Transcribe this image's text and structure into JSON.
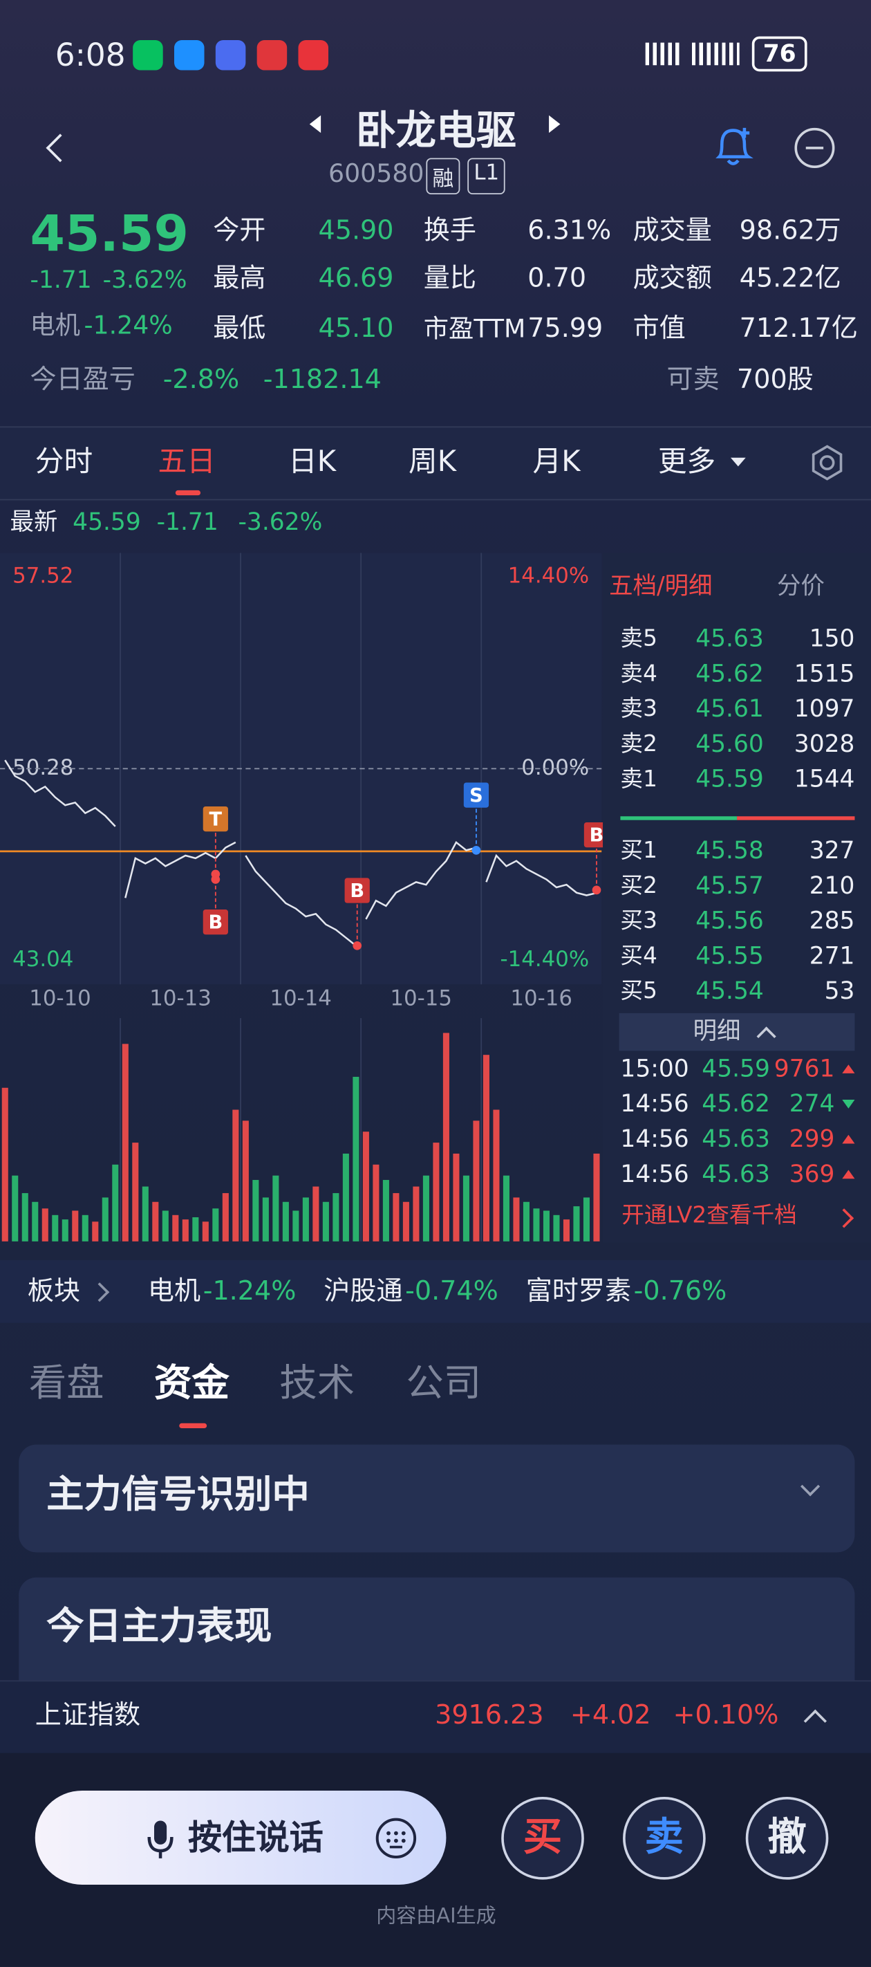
{
  "status_bar": {
    "time": "6:08",
    "battery": "76"
  },
  "header": {
    "name": "卧龙电驱",
    "code": "600580",
    "tags": [
      "融",
      "L1"
    ]
  },
  "quote": {
    "price": "45.59",
    "change": "-1.71",
    "change_pct": "-3.62%",
    "sector": "电机",
    "sector_pct": "-1.24%"
  },
  "stats": [
    [
      "今开",
      "45.90"
    ],
    [
      "最高",
      "46.69"
    ],
    [
      "最低",
      "45.10"
    ],
    [
      "换手",
      "6.31%"
    ],
    [
      "量比",
      "0.70"
    ],
    [
      "市盈TTM",
      "75.99"
    ],
    [
      "成交量",
      "98.62万"
    ],
    [
      "成交额",
      "45.22亿"
    ],
    [
      "市值",
      "712.17亿"
    ]
  ],
  "pnl": {
    "label": "今日盈亏",
    "pct": "-2.8%",
    "amount": "-1182.14",
    "sellable_label": "可卖",
    "sellable": "700股"
  },
  "tabs": {
    "items": [
      "分时",
      "五日",
      "日K",
      "周K",
      "月K",
      "更多"
    ],
    "active": 1
  },
  "latest": {
    "label": "最新",
    "price": "45.59",
    "change": "-1.71",
    "change_pct": "-3.62%"
  },
  "price_chart": {
    "type": "line",
    "ylim": [
      43.04,
      57.52
    ],
    "yticks": [
      57.52,
      50.28,
      43.04
    ],
    "y2lim": [
      -14.4,
      14.4
    ],
    "y2ticks": [
      {
        "value": 14.4,
        "label": "14.40%"
      },
      {
        "value": 0,
        "label": "0.00%"
      },
      {
        "value": -14.4,
        "label": "-14.40%"
      }
    ],
    "reference": 50.28,
    "cost_line": 47.16,
    "days": [
      {
        "label": "10-10",
        "values": [
          50.6,
          50.0,
          49.8,
          49.4,
          49.6,
          49.2,
          48.9,
          49.0,
          48.6,
          48.8,
          48.5,
          48.1
        ],
        "volume": [
          70,
          30,
          22,
          18,
          15,
          12,
          10,
          14,
          12,
          9,
          20,
          35
        ]
      },
      {
        "label": "10-13",
        "values": [
          45.4,
          46.9,
          46.7,
          46.9,
          46.6,
          46.8,
          47.0,
          46.9,
          47.1,
          46.9,
          47.3,
          47.5
        ],
        "volume": [
          90,
          45,
          25,
          18,
          14,
          12,
          10,
          11,
          9,
          15,
          22,
          60
        ]
      },
      {
        "label": "10-14",
        "values": [
          47.0,
          46.4,
          46.0,
          45.6,
          45.2,
          45.0,
          44.7,
          44.8,
          44.4,
          44.2,
          43.9,
          43.6
        ],
        "volume": [
          55,
          28,
          20,
          30,
          18,
          14,
          20,
          25,
          18,
          22,
          40,
          75
        ]
      },
      {
        "label": "10-15",
        "values": [
          44.6,
          45.3,
          45.1,
          45.6,
          45.8,
          46.0,
          45.9,
          46.4,
          46.8,
          47.5,
          47.2,
          47.3
        ],
        "volume": [
          50,
          35,
          28,
          22,
          18,
          25,
          30,
          45,
          95,
          40,
          30,
          55
        ]
      },
      {
        "label": "10-16",
        "values": [
          46.0,
          47.0,
          46.6,
          46.8,
          46.5,
          46.3,
          46.1,
          45.8,
          45.9,
          45.6,
          45.5,
          45.59
        ],
        "volume": [
          85,
          60,
          30,
          20,
          18,
          15,
          14,
          12,
          10,
          16,
          20,
          40
        ]
      }
    ],
    "vlim": [
      0,
      100
    ],
    "markers": [
      {
        "label": "T",
        "day": 1,
        "value": 46.3
      },
      {
        "label": "B",
        "day": 1,
        "value": 46.1
      },
      {
        "label": "B",
        "day": 2,
        "value": 43.6
      },
      {
        "label": "S",
        "day": 3,
        "value": 47.2
      },
      {
        "label": "B",
        "day": 4,
        "value": 45.7
      }
    ]
  },
  "order_book": {
    "title": "五档/明细",
    "tab2": "分价",
    "sell": [
      [
        "卖5",
        "45.63",
        "150"
      ],
      [
        "卖4",
        "45.62",
        "1515"
      ],
      [
        "卖3",
        "45.61",
        "1097"
      ],
      [
        "卖2",
        "45.60",
        "3028"
      ],
      [
        "卖1",
        "45.59",
        "1544"
      ]
    ],
    "buy": [
      [
        "买1",
        "45.58",
        "327"
      ],
      [
        "买2",
        "45.57",
        "210"
      ],
      [
        "买3",
        "45.56",
        "285"
      ],
      [
        "买4",
        "45.55",
        "271"
      ],
      [
        "买5",
        "45.54",
        "53"
      ]
    ],
    "detail_label": "明细",
    "details": [
      {
        "time": "15:00",
        "price": "45.59",
        "volume": "9761",
        "color": "#f04848"
      },
      {
        "time": "14:56",
        "price": "45.62",
        "volume": "274",
        "color": "#2fc37a"
      },
      {
        "time": "14:56",
        "price": "45.63",
        "volume": "299",
        "color": "#f04848"
      },
      {
        "time": "14:56",
        "price": "45.63",
        "volume": "369",
        "color": "#f04848"
      }
    ],
    "promo": "开通LV2查看千档"
  },
  "sectors": {
    "label": "板块",
    "items": [
      {
        "name": "电机",
        "pct": "-1.24%"
      },
      {
        "name": "沪股通",
        "pct": "-0.74%"
      },
      {
        "name": "富时罗素",
        "pct": "-0.76%"
      }
    ]
  },
  "bottom_tabs": {
    "items": [
      "看盘",
      "资金",
      "技术",
      "公司"
    ],
    "active": 1
  },
  "cards": [
    "主力信号识别中",
    "今日主力表现"
  ],
  "index_bar": {
    "name": "上证指数",
    "value": "3916.23",
    "change": "+4.02",
    "pct": "+0.10%"
  },
  "voice": "按住说话",
  "actions": [
    "买",
    "卖",
    "撤"
  ],
  "footer": "内容由AI生成"
}
